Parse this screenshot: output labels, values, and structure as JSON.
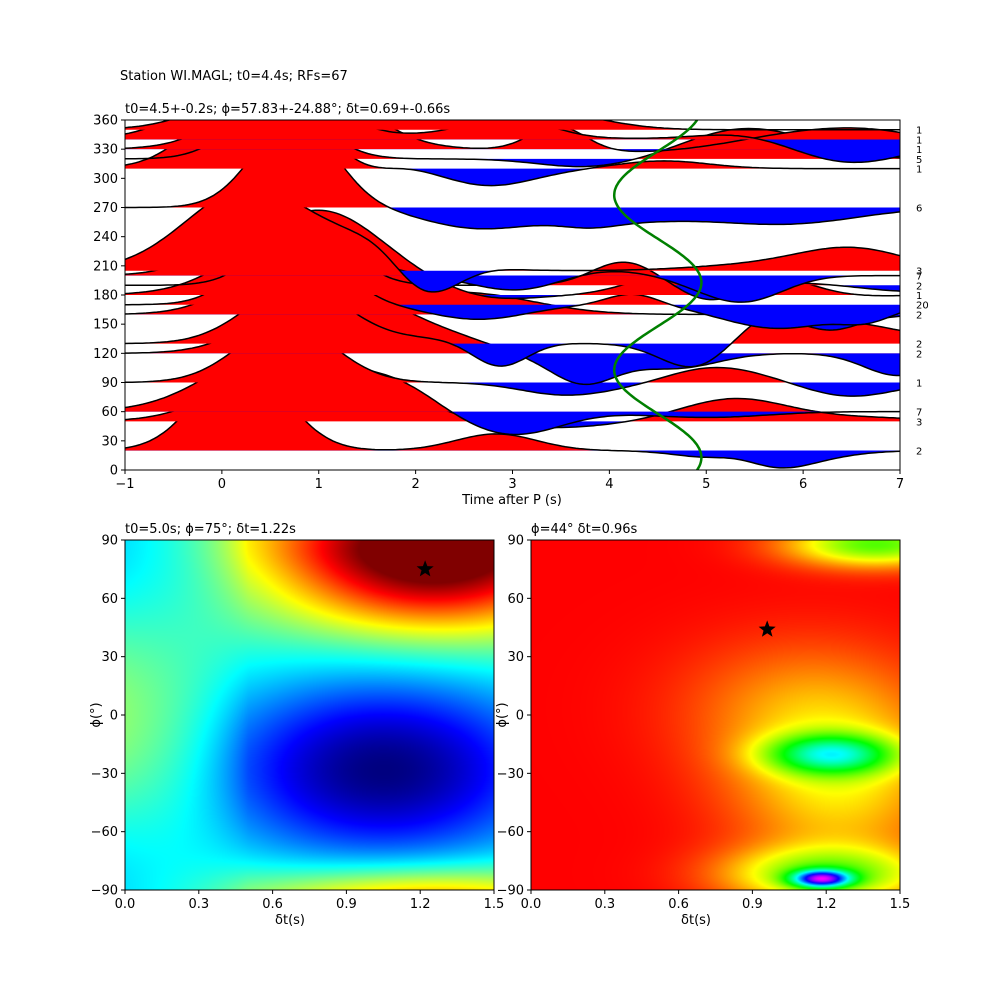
{
  "figure": {
    "suptitle": "Station WI.MAGL; t0=4.4s; RFs=67"
  },
  "chart_data": [
    {
      "type": "line",
      "title": "t0=4.5+-0.2s; ϕ=57.83+-24.88°; δt=0.69+-0.66s",
      "xlabel": "Time after P (s)",
      "ylabel": "",
      "xlim": [
        -1,
        7
      ],
      "ylim": [
        0,
        360
      ],
      "xticks": [
        -1,
        0,
        1,
        2,
        3,
        4,
        5,
        6,
        7
      ],
      "yticks": [
        0,
        30,
        60,
        90,
        120,
        150,
        180,
        210,
        240,
        270,
        300,
        330,
        360
      ],
      "baz_bins": [
        20,
        50,
        60,
        90,
        120,
        130,
        160,
        170,
        180,
        190,
        200,
        205,
        270,
        310,
        320,
        330,
        340,
        350
      ],
      "counts": [
        "2",
        "3",
        "7",
        "1",
        "2",
        "2",
        "2",
        "20",
        "1",
        "2",
        "7",
        "3",
        "6",
        "1",
        "5",
        "1",
        "1",
        "1"
      ],
      "positive_color": "#ff0000",
      "negative_color": "#0000ff",
      "fit_curve": {
        "color": "#008000",
        "t0": 4.5,
        "amplitude": 0.45,
        "period_deg": 180,
        "phase_deg": 57.83,
        "description_x_values": [
          4.5,
          4.95,
          4.5,
          4.05,
          4.5,
          4.95,
          4.5,
          4.05,
          4.5
        ]
      }
    },
    {
      "type": "heatmap",
      "title": "t0=5.0s; ϕ=75°; δt=1.22s",
      "xlabel": "δt(s)",
      "ylabel": "ϕ(°)",
      "xlim": [
        0,
        1.5
      ],
      "ylim": [
        -90,
        90
      ],
      "xticks": [
        "0.0",
        "0.3",
        "0.6",
        "0.9",
        "1.2",
        "1.5"
      ],
      "yticks": [
        "90",
        "60",
        "30",
        "0",
        "−30",
        "−60",
        "−90"
      ],
      "colormap": "jet",
      "best": {
        "dt": 1.22,
        "phi": 75
      }
    },
    {
      "type": "heatmap",
      "title": "ϕ=44° δt=0.96s",
      "xlabel": "δt(s)",
      "ylabel": "ϕ(°)",
      "xlim": [
        0,
        1.5
      ],
      "ylim": [
        -90,
        90
      ],
      "xticks": [
        "0.0",
        "0.3",
        "0.6",
        "0.9",
        "1.2",
        "1.5"
      ],
      "yticks": [
        "90",
        "60",
        "30",
        "0",
        "−30",
        "−60",
        "−90"
      ],
      "colormap": "hsv",
      "best": {
        "dt": 0.96,
        "phi": 44
      },
      "features": [
        {
          "kind": "min-spot",
          "dt": 1.18,
          "phi": -84,
          "color": "#ff00ff"
        },
        {
          "kind": "green-spot",
          "dt": 1.2,
          "phi": -20
        }
      ]
    }
  ]
}
